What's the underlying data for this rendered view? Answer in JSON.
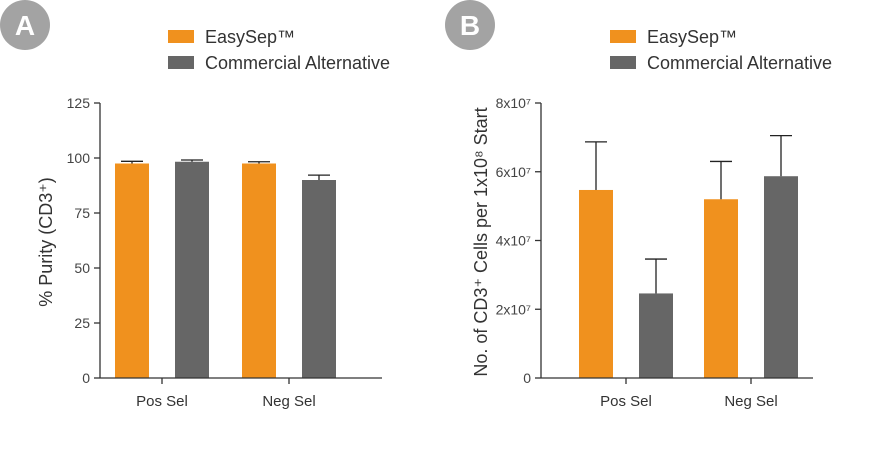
{
  "colors": {
    "easysep": "#F0911E",
    "alternative": "#666666",
    "badge": "#A3A3A3",
    "axis": "#333333"
  },
  "legend": {
    "easysep": "EasySep™",
    "alternative": "Commercial Alternative"
  },
  "chart_data": [
    {
      "panel": "A",
      "type": "bar",
      "ylabel": "% Purity (CD3⁺)",
      "categories": [
        "Pos Sel",
        "Neg Sel"
      ],
      "ylim": [
        0,
        125
      ],
      "yticks": [
        "0",
        "25",
        "50",
        "75",
        "100",
        "125"
      ],
      "series": [
        {
          "name": "EasySep™",
          "values": [
            97.5,
            97.5
          ],
          "errors": [
            1.0,
            0.8
          ]
        },
        {
          "name": "Commercial Alternative",
          "values": [
            98.3,
            90.0
          ],
          "errors": [
            0.8,
            2.2
          ]
        }
      ],
      "grid": false
    },
    {
      "panel": "B",
      "type": "bar",
      "ylabel": "No. of CD3⁺ Cells per 1x10⁸ Start",
      "categories": [
        "Pos Sel",
        "Neg Sel"
      ],
      "ylim": [
        0,
        80000000
      ],
      "yticks": [
        "0",
        "2x10⁷",
        "4x10⁷",
        "6x10⁷",
        "8x10⁷"
      ],
      "series": [
        {
          "name": "EasySep™",
          "values": [
            54700000,
            52000000
          ],
          "errors": [
            14000000,
            11000000
          ]
        },
        {
          "name": "Commercial Alternative",
          "values": [
            24600000,
            58700000
          ],
          "errors": [
            10000000,
            11800000
          ]
        }
      ],
      "grid": false
    }
  ]
}
